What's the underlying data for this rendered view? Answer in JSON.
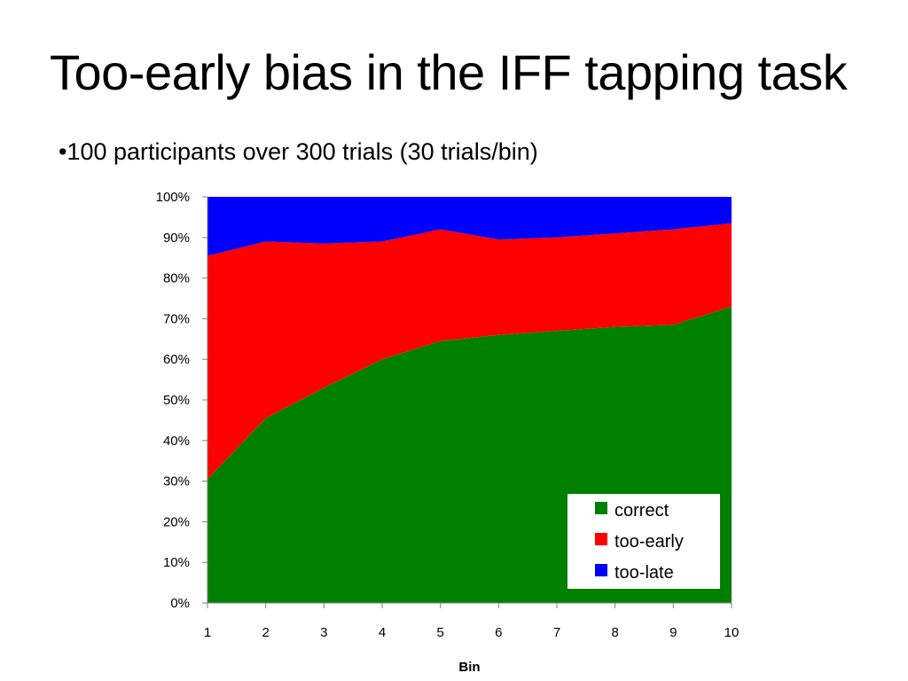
{
  "slide": {
    "title": "Too-early bias in the IFF tapping task",
    "bullet": "•100 participants over 300 trials (30 trials/bin)"
  },
  "chart_data": {
    "type": "area",
    "stacked": true,
    "percent": true,
    "categories": [
      "1",
      "2",
      "3",
      "4",
      "5",
      "6",
      "7",
      "8",
      "9",
      "10"
    ],
    "series": [
      {
        "name": "correct",
        "color": "#008000",
        "values": [
          30.5,
          45.5,
          53,
          60,
          64.5,
          66,
          67,
          68,
          68.5,
          73
        ]
      },
      {
        "name": "too-early",
        "color": "#ff0000",
        "values": [
          55,
          43.5,
          35.5,
          29,
          27.5,
          23.5,
          23,
          23,
          23.5,
          20.5
        ]
      },
      {
        "name": "too-late",
        "color": "#0000ff",
        "values": [
          14.5,
          11,
          11.5,
          11,
          8,
          10.5,
          10,
          9,
          8,
          6.5
        ]
      }
    ],
    "yticks": [
      "0%",
      "10%",
      "20%",
      "30%",
      "40%",
      "50%",
      "60%",
      "70%",
      "80%",
      "90%",
      "100%"
    ],
    "ylim": [
      0,
      100
    ],
    "xlabel": "Bin",
    "ylabel": "",
    "grid": false,
    "legend_position": "bottom-right"
  }
}
